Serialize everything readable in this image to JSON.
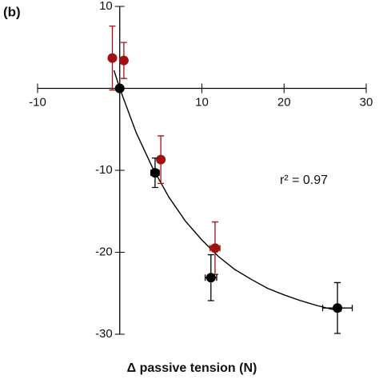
{
  "chart_data": {
    "type": "scatter",
    "panel_label": "(b)",
    "x_label": "Δ passive tension (N)",
    "annotation": "r² = 0.97",
    "xlim": [
      -10,
      30
    ],
    "ylim": [
      -30,
      10
    ],
    "xticks": [
      -10,
      10,
      20,
      30
    ],
    "yticks": [
      10,
      -10,
      -20,
      -30
    ],
    "series": [
      {
        "color": "#a01212",
        "x": [
          -0.9,
          0.5,
          5.0,
          11.6
        ],
        "values": [
          3.7,
          3.4,
          -8.7,
          -19.5
        ],
        "xerr": [
          0.3,
          0.3,
          0.3,
          0.6
        ],
        "yerr": [
          3.9,
          2.2,
          2.9,
          3.2
        ]
      },
      {
        "color": "#000000",
        "x": [
          0,
          4.3,
          11.1,
          26.5
        ],
        "values": [
          0,
          -10.3,
          -23.1,
          -26.8
        ],
        "xerr": [
          0.2,
          0.5,
          0.7,
          1.8
        ],
        "yerr": [
          0.2,
          1.8,
          2.8,
          3.1
        ]
      }
    ],
    "fit": {
      "color": "#000000",
      "x": [
        -0.7,
        0,
        2,
        4,
        6,
        8,
        10,
        12,
        14,
        16,
        18,
        20,
        22,
        24,
        26,
        27
      ],
      "values": [
        2.2,
        0,
        -5.4,
        -9.7,
        -13.3,
        -16.2,
        -18.5,
        -20.5,
        -22.1,
        -23.3,
        -24.4,
        -25.2,
        -25.9,
        -26.5,
        -27.0,
        -27.2
      ]
    }
  }
}
